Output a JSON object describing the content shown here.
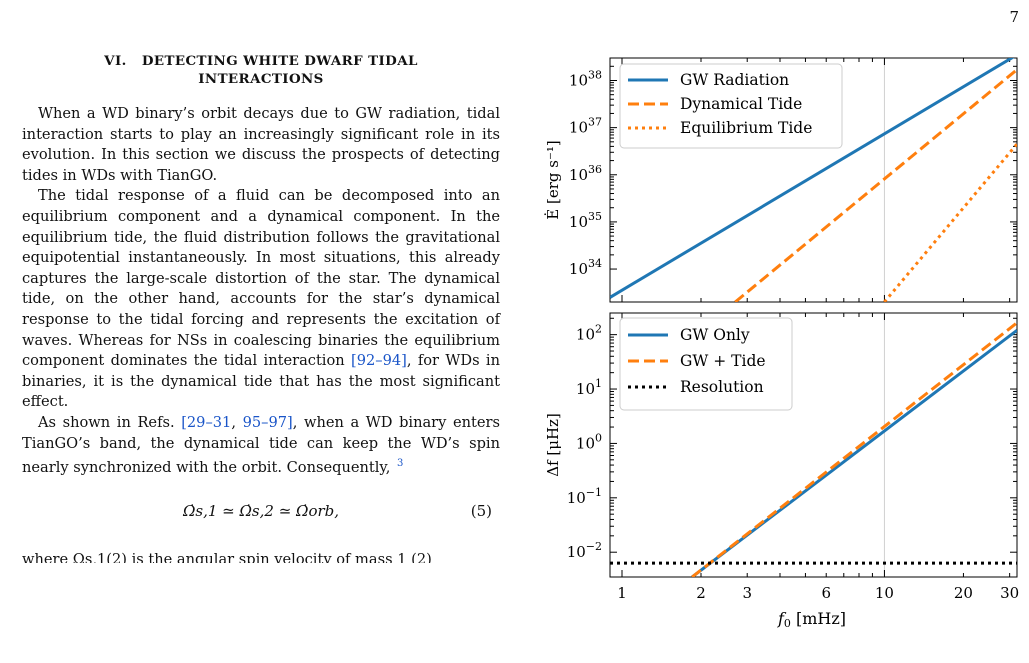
{
  "page_number": "7",
  "section": {
    "heading_line1": "VI.   DETECTING WHITE DWARF TIDAL",
    "heading_line2": "INTERACTIONS",
    "para1": "When a WD binary’s orbit decays due to GW radiation, tidal interaction starts to play an increasingly significant role in its evolution. In this section we discuss the prospects of detecting tides in WDs with TianGO.",
    "para2_a": "The tidal response of a fluid can be decomposed into an equilibrium component and a dynamical component. In the equilibrium tide, the fluid distribution follows the gravitational equipotential instantaneously. In most situations, this already captures the large-scale distortion of the star. The dynamical tide, on the other hand, accounts for the star’s dynamical response to the tidal forcing and represents the excitation of waves. Whereas for NSs in coalescing binaries the equilibrium component dominates the tidal interaction ",
    "para2_ref": "[92–94]",
    "para2_b": ", for WDs in binaries, it is the dynamical tide that has the most significant effect.",
    "para3_a": "As shown in Refs. ",
    "para3_ref1": "[29–31",
    "para3_sep": ", ",
    "para3_ref2": "95–97]",
    "para3_b": ", when a WD binary enters TianGO’s band, the dynamical tide can keep the WD’s spin nearly synchronized with the orbit. Consequently,",
    "footnote_mark": "3",
    "equation": "Ω̇s,1 ≃ Ω̇s,2 ≃ Ω̇orb,",
    "equation_number": "(5)",
    "cutoff_line": "where Ωs,1(2) is the angular spin velocity of mass 1 (2)"
  },
  "figure": {
    "x_label_prefix": "f",
    "x_label_sub": "0",
    "x_label_suffix": " [mHz]",
    "x_ticks": [
      "1",
      "2",
      "3",
      "6",
      "10",
      "20",
      "30"
    ],
    "top_panel": {
      "y_label": "Ė [erg s⁻¹]",
      "y_tick_exponents": [
        "34",
        "35",
        "36",
        "37",
        "38"
      ],
      "legend": [
        "GW Radiation",
        "Dynamical Tide",
        "Equilibrium Tide"
      ]
    },
    "bottom_panel": {
      "y_label": "Δf [μHz]",
      "y_tick_exponents": [
        "-2",
        "-1",
        "0",
        "1",
        "2"
      ],
      "legend": [
        "GW Only",
        "GW + Tide",
        "Resolution"
      ]
    }
  },
  "colors": {
    "blue": "#1f77b4",
    "orange": "#ff7f0e",
    "black": "#000000",
    "link": "#1a55c8"
  },
  "chart_data": [
    {
      "type": "line",
      "xscale": "log",
      "yscale": "log",
      "x_unit": "mHz",
      "xlim": [
        0.9,
        32
      ],
      "ylim": [
        2e+33,
        3e+38
      ],
      "grid": "gridline at x = 10",
      "legend_position": "top-left",
      "series": [
        {
          "name": "GW Radiation",
          "style": "solid",
          "color": "#1f77b4",
          "x": [
            0.9,
            32
          ],
          "y": [
            2.5e+33,
            3.5e+38
          ]
        },
        {
          "name": "Dynamical Tide",
          "style": "dashed",
          "color": "#ff7f0e",
          "x": [
            2.7,
            32
          ],
          "y": [
            2e+33,
            1.7e+38
          ]
        },
        {
          "name": "Equilibrium Tide",
          "style": "dotted",
          "color": "#ff7f0e",
          "x": [
            10,
            32
          ],
          "y": [
            2e+33,
            4.5e+36
          ]
        }
      ]
    },
    {
      "type": "line",
      "xscale": "log",
      "yscale": "log",
      "x_unit": "mHz",
      "xlim": [
        0.9,
        32
      ],
      "ylim": [
        0.0035,
        250
      ],
      "grid": "gridline at x = 10",
      "legend_position": "top-left",
      "series": [
        {
          "name": "GW Only",
          "style": "solid",
          "color": "#1f77b4",
          "x": [
            1.85,
            32
          ],
          "y": [
            0.0035,
            120
          ]
        },
        {
          "name": "GW + Tide",
          "style": "dashed",
          "color": "#ff7f0e",
          "x": [
            1.85,
            32
          ],
          "y": [
            0.0035,
            165
          ]
        },
        {
          "name": "Resolution",
          "style": "dotted",
          "color": "#000000",
          "x": [
            0.9,
            32
          ],
          "y": [
            0.0063,
            0.0063
          ]
        }
      ]
    }
  ]
}
